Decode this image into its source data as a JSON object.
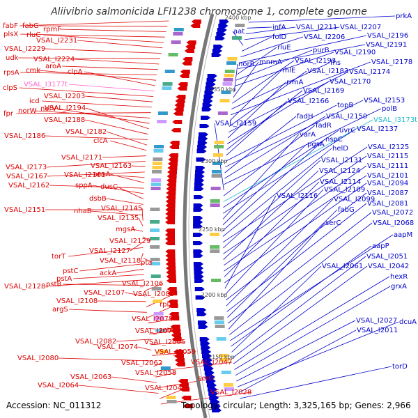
{
  "title": "Aliivibrio salmonicida LFI1238 chromosome 1, complete genome",
  "accession": "Accession: NC_011312",
  "summary": "Topology: circular; Length: 3,325,165 bp; Genes: 2,966",
  "colors": {
    "reverse": "#dd0000",
    "forward": "#0000cc",
    "rna": "#ff66cc",
    "trna": "#22bbcc",
    "backbone": "#888888"
  },
  "ticks": [
    "2400 kbp",
    "2350 kbp",
    "2300 kbp",
    "2250 kbp",
    "2200 kbp",
    "2150 kbp"
  ],
  "left_labels": [
    {
      "t": "fabF",
      "c": "red"
    },
    {
      "t": "fabG",
      "c": "red"
    },
    {
      "t": "rpmF",
      "c": "red"
    },
    {
      "t": "plsX",
      "c": "red"
    },
    {
      "t": "rluC",
      "c": "red"
    },
    {
      "t": "VSAL_I2231",
      "c": "red"
    },
    {
      "t": "VSAL_I2229",
      "c": "red"
    },
    {
      "t": "udk",
      "c": "red"
    },
    {
      "t": "VSAL_I2224",
      "c": "red"
    },
    {
      "t": "aroA",
      "c": "red"
    },
    {
      "t": "rpsA",
      "c": "red"
    },
    {
      "t": "cmk",
      "c": "red"
    },
    {
      "t": "clpA",
      "c": "red"
    },
    {
      "t": "VSAL_I3177t",
      "c": "pink"
    },
    {
      "t": "clpS",
      "c": "red"
    },
    {
      "t": "VSAL_I2203",
      "c": "red"
    },
    {
      "t": "icd",
      "c": "red"
    },
    {
      "t": "fpr",
      "c": "red"
    },
    {
      "t": "norW",
      "c": "red"
    },
    {
      "t": "norV",
      "c": "red"
    },
    {
      "t": "VSAL_I2194",
      "c": "red"
    },
    {
      "t": "VSAL_I2188",
      "c": "red"
    },
    {
      "t": "VSAL_I2186",
      "c": "red"
    },
    {
      "t": "VSAL_I2182",
      "c": "red"
    },
    {
      "t": "clcA",
      "c": "red"
    },
    {
      "t": "VSAL_I2171",
      "c": "red"
    },
    {
      "t": "VSAL_I2173",
      "c": "red"
    },
    {
      "t": "VSAL_I2163",
      "c": "red"
    },
    {
      "t": "VSAL_I2167",
      "c": "red"
    },
    {
      "t": "VSAL_I2161",
      "c": "red"
    },
    {
      "t": "ansA",
      "c": "red"
    },
    {
      "t": "VSAL_I2162",
      "c": "red"
    },
    {
      "t": "sppA",
      "c": "red"
    },
    {
      "t": "dusC",
      "c": "red"
    },
    {
      "t": "dsbB",
      "c": "red"
    },
    {
      "t": "VSAL_I2151",
      "c": "red"
    },
    {
      "t": "nhaB",
      "c": "red"
    },
    {
      "t": "VSAL_I2145",
      "c": "red"
    },
    {
      "t": "VSAL_I2135",
      "c": "red"
    },
    {
      "t": "mgsA",
      "c": "red"
    },
    {
      "t": "VSAL_I2129",
      "c": "red"
    },
    {
      "t": "VSAL_I2127",
      "c": "red"
    },
    {
      "t": "torT",
      "c": "red"
    },
    {
      "t": "VSAL_I2118",
      "c": "red"
    },
    {
      "t": "pta",
      "c": "red"
    },
    {
      "t": "pstC",
      "c": "red"
    },
    {
      "t": "ackA",
      "c": "red"
    },
    {
      "t": "pstA",
      "c": "red"
    },
    {
      "t": "VSAL_I2128",
      "c": "red"
    },
    {
      "t": "pstB",
      "c": "red"
    },
    {
      "t": "VSAL_I2106",
      "c": "red"
    },
    {
      "t": "VSAL_I2107",
      "c": "red"
    },
    {
      "t": "VSAL_I2108",
      "c": "red"
    },
    {
      "t": "VSAL_I2085",
      "c": "red"
    },
    {
      "t": "argS",
      "c": "red"
    },
    {
      "t": "rplY",
      "c": "red"
    },
    {
      "t": "VSAL_I2075",
      "c": "red"
    },
    {
      "t": "zntA",
      "c": "red"
    },
    {
      "t": "VSAL_I2071",
      "c": "red"
    },
    {
      "t": "VSAL_I2082",
      "c": "red"
    },
    {
      "t": "VSAL_I2065",
      "c": "red"
    },
    {
      "t": "VSAL_I2074",
      "c": "red"
    },
    {
      "t": "VSAL_I2059",
      "c": "red"
    },
    {
      "t": "VSAL_I2080",
      "c": "red"
    },
    {
      "t": "VSAL_I2062",
      "c": "red"
    },
    {
      "t": "VSAL_I2047",
      "c": "red"
    },
    {
      "t": "VSAL_I2058",
      "c": "red"
    },
    {
      "t": "VSAL_I2063",
      "c": "red"
    },
    {
      "t": "serC",
      "c": "red"
    },
    {
      "t": "VSAL_I2064",
      "c": "red"
    },
    {
      "t": "VSAL_I2046",
      "c": "red"
    },
    {
      "t": "VSAL_I2028",
      "c": "red"
    }
  ],
  "right_labels": [
    {
      "t": "prkA",
      "c": "blue"
    },
    {
      "t": "infA",
      "c": "blue"
    },
    {
      "t": "VSAL_I2211",
      "c": "blue"
    },
    {
      "t": "VSAL_I2207",
      "c": "blue"
    },
    {
      "t": "aat",
      "c": "blue"
    },
    {
      "t": "folD",
      "c": "blue"
    },
    {
      "t": "VSAL_I2206",
      "c": "blue"
    },
    {
      "t": "VSAL_I2196",
      "c": "blue"
    },
    {
      "t": "VSAL_I2191",
      "c": "blue"
    },
    {
      "t": "rluE",
      "c": "blue"
    },
    {
      "t": "purB",
      "c": "blue"
    },
    {
      "t": "VSAL_I2190",
      "c": "blue"
    },
    {
      "t": "norR",
      "c": "blue"
    },
    {
      "t": "mnmA",
      "c": "blue"
    },
    {
      "t": "VSAL_I2193",
      "c": "blue"
    },
    {
      "t": "fhs",
      "c": "blue"
    },
    {
      "t": "VSAL_I2178",
      "c": "blue"
    },
    {
      "t": "rhlE",
      "c": "blue"
    },
    {
      "t": "VSAL_I2183",
      "c": "blue"
    },
    {
      "t": "VSAL_I2174",
      "c": "blue"
    },
    {
      "t": "rrmA",
      "c": "blue"
    },
    {
      "t": "VSAL_I2170",
      "c": "blue"
    },
    {
      "t": "VSAL_I2169",
      "c": "blue"
    },
    {
      "t": "VSAL_I2166",
      "c": "blue"
    },
    {
      "t": "topB",
      "c": "blue"
    },
    {
      "t": "VSAL_I2153",
      "c": "blue"
    },
    {
      "t": "fadH",
      "c": "blue"
    },
    {
      "t": "VSAL_I2150",
      "c": "blue"
    },
    {
      "t": "polB",
      "c": "blue"
    },
    {
      "t": "VSAL_I2159",
      "c": "blue"
    },
    {
      "t": "fadR",
      "c": "blue"
    },
    {
      "t": "VSAL_I3173t",
      "c": "cyan"
    },
    {
      "t": "uvrC",
      "c": "blue"
    },
    {
      "t": "VSAL_I2137",
      "c": "blue"
    },
    {
      "t": "varA",
      "c": "blue"
    },
    {
      "t": "pgsA",
      "c": "blue"
    },
    {
      "t": "nspC",
      "c": "blue"
    },
    {
      "t": "helD",
      "c": "blue"
    },
    {
      "t": "VSAL_I2125",
      "c": "blue"
    },
    {
      "t": "VSAL_I2131",
      "c": "blue"
    },
    {
      "t": "VSAL_I2115",
      "c": "blue"
    },
    {
      "t": "VSAL_I2124",
      "c": "blue"
    },
    {
      "t": "VSAL_I2111",
      "c": "blue"
    },
    {
      "t": "VSAL_I2101",
      "c": "blue"
    },
    {
      "t": "VSAL_I2114",
      "c": "blue"
    },
    {
      "t": "VSAL_I2094",
      "c": "blue"
    },
    {
      "t": "VSAL_I2116",
      "c": "blue"
    },
    {
      "t": "VSAL_I2109",
      "c": "blue"
    },
    {
      "t": "VSAL_I2087",
      "c": "blue"
    },
    {
      "t": "VSAL_I2099",
      "c": "blue"
    },
    {
      "t": "VSAL_I2081",
      "c": "blue"
    },
    {
      "t": "fabG",
      "c": "blue"
    },
    {
      "t": "VSAL_I2072",
      "c": "blue"
    },
    {
      "t": "serC",
      "c": "blue"
    },
    {
      "t": "VSAL_I2068",
      "c": "blue"
    },
    {
      "t": "aapM",
      "c": "blue"
    },
    {
      "t": "aapP",
      "c": "blue"
    },
    {
      "t": "VSAL_I2061",
      "c": "blue"
    },
    {
      "t": "VSAL_I2051",
      "c": "blue"
    },
    {
      "t": "VSAL_I2042",
      "c": "blue"
    },
    {
      "t": "hexR",
      "c": "blue"
    },
    {
      "t": "grxA",
      "c": "blue"
    },
    {
      "t": "VSAL_I2027",
      "c": "blue"
    },
    {
      "t": "dcuA",
      "c": "blue"
    },
    {
      "t": "VSAL_I2011",
      "c": "blue"
    },
    {
      "t": "torD",
      "c": "blue"
    }
  ]
}
